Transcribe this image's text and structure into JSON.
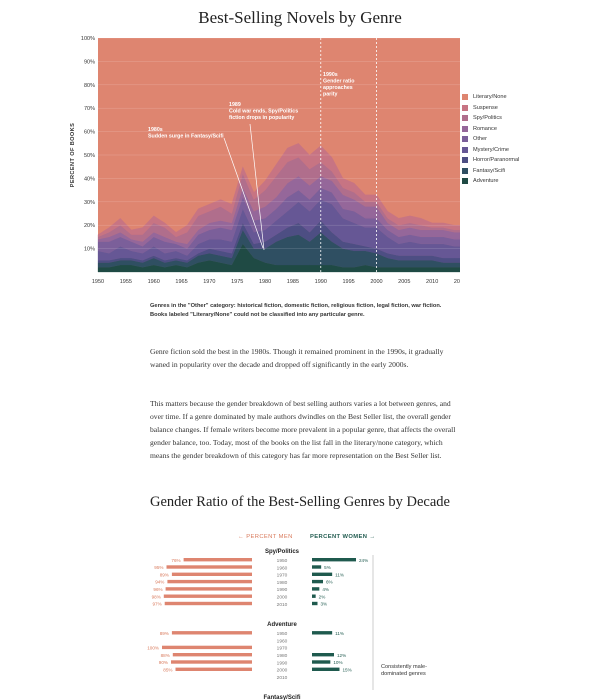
{
  "chart_data": [
    {
      "type": "area",
      "title": "Best-Selling Novels by Genre",
      "ylabel": "PERCENT OF BOOKS",
      "ylim": [
        0,
        100
      ],
      "xlim": [
        1950,
        2015
      ],
      "y_tick_labels": [
        "10%",
        "20%",
        "30%",
        "40%",
        "50%",
        "60%",
        "70%",
        "80%",
        "90%",
        "100%"
      ],
      "x_tick_labels": [
        "1950",
        "1955",
        "1960",
        "1965",
        "1970",
        "1975",
        "1980",
        "1985",
        "1990",
        "1995",
        "2000",
        "2005",
        "2010",
        "2015"
      ],
      "stacking": "stacked to 100%, Adventure at bottom",
      "legend_position": "right",
      "x": [
        1950,
        1952,
        1954,
        1956,
        1958,
        1960,
        1962,
        1964,
        1966,
        1968,
        1970,
        1972,
        1974,
        1976,
        1978,
        1980,
        1982,
        1984,
        1986,
        1988,
        1990,
        1992,
        1994,
        1996,
        1998,
        2000,
        2002,
        2004,
        2006,
        2008,
        2010,
        2012,
        2014,
        2015
      ],
      "series": [
        {
          "name": "Adventure",
          "values": [
            2,
            2,
            3,
            3,
            2,
            3,
            2,
            3,
            2,
            4,
            5,
            4,
            3,
            12,
            6,
            4,
            3,
            3,
            3,
            3,
            3,
            3,
            2,
            2,
            3,
            2,
            2,
            2,
            2,
            2,
            2,
            2,
            2,
            2
          ]
        },
        {
          "name": "Fantasy/Scifi",
          "values": [
            2,
            2,
            2,
            2,
            2,
            3,
            2,
            2,
            2,
            3,
            3,
            3,
            3,
            6,
            4,
            6,
            10,
            12,
            13,
            10,
            14,
            10,
            8,
            7,
            6,
            6,
            4,
            3,
            3,
            3,
            3,
            2,
            2,
            2
          ]
        },
        {
          "name": "Horror/Paranormal",
          "values": [
            1,
            1,
            1,
            1,
            1,
            1,
            1,
            1,
            1,
            1,
            2,
            2,
            2,
            3,
            2,
            3,
            3,
            4,
            5,
            4,
            5,
            4,
            3,
            3,
            2,
            2,
            2,
            2,
            2,
            2,
            2,
            2,
            2,
            2
          ]
        },
        {
          "name": "Mystery/Crime",
          "values": [
            4,
            3,
            5,
            3,
            3,
            4,
            3,
            3,
            2,
            4,
            4,
            5,
            5,
            6,
            5,
            5,
            6,
            7,
            9,
            9,
            9,
            12,
            10,
            9,
            8,
            9,
            7,
            5,
            6,
            5,
            5,
            6,
            5,
            5
          ]
        },
        {
          "name": "Other",
          "values": [
            4,
            5,
            4,
            4,
            3,
            4,
            5,
            3,
            3,
            4,
            4,
            5,
            5,
            5,
            5,
            5,
            5,
            6,
            5,
            5,
            5,
            5,
            4,
            5,
            4,
            4,
            3,
            3,
            3,
            3,
            3,
            3,
            3,
            3
          ]
        },
        {
          "name": "Romance",
          "values": [
            1,
            2,
            2,
            1,
            2,
            2,
            2,
            1,
            2,
            2,
            3,
            3,
            3,
            4,
            4,
            5,
            5,
            6,
            6,
            6,
            5,
            5,
            6,
            5,
            5,
            5,
            3,
            3,
            3,
            3,
            3,
            3,
            3,
            3
          ]
        },
        {
          "name": "Spy/Politics",
          "values": [
            1,
            2,
            3,
            2,
            3,
            4,
            4,
            2,
            5,
            6,
            5,
            6,
            4,
            6,
            5,
            7,
            9,
            9,
            8,
            7,
            6,
            4,
            3,
            3,
            2,
            2,
            2,
            2,
            2,
            2,
            1,
            1,
            1,
            1
          ]
        },
        {
          "name": "Suspense",
          "values": [
            1,
            2,
            3,
            2,
            3,
            3,
            2,
            2,
            3,
            3,
            3,
            3,
            4,
            3,
            3,
            4,
            5,
            6,
            6,
            6,
            7,
            6,
            4,
            4,
            3,
            3,
            3,
            3,
            3,
            3,
            2,
            2,
            2,
            2
          ]
        },
        {
          "name": "Literary/None",
          "values": [
            84,
            81,
            77,
            82,
            81,
            76,
            79,
            83,
            80,
            73,
            71,
            69,
            71,
            55,
            66,
            61,
            54,
            47,
            45,
            50,
            46,
            51,
            60,
            62,
            67,
            67,
            74,
            77,
            76,
            77,
            79,
            79,
            80,
            80
          ]
        }
      ],
      "colors": {
        "Literary/None": "#de8570",
        "Suspense": "#c77483",
        "Spy/Politics": "#b06e8c",
        "Romance": "#95679a",
        "Other": "#7b5f9a",
        "Mystery/Crime": "#665795",
        "Horror/Paranormal": "#4d4e83",
        "Fantasy/Scifi": "#2f4f62",
        "Adventure": "#1f4a44"
      },
      "legend_order": [
        "Literary/None",
        "Suspense",
        "Spy/Politics",
        "Romance",
        "Other",
        "Mystery/Crime",
        "Horror/Paranormal",
        "Fantasy/Scifi",
        "Adventure"
      ],
      "reference_lines_x": [
        1990,
        2000
      ],
      "annotations": [
        {
          "lines": [
            "1980s",
            "Sudden surge in Fantasy/Scifi"
          ],
          "x": 1980
        },
        {
          "lines": [
            "1989",
            "Cold war ends, Spy/Politics",
            "fiction drops in popularity"
          ],
          "x": 1989
        },
        {
          "lines": [
            "1990s",
            "Gender ratio",
            "approaches",
            "parity"
          ],
          "x": 1990
        }
      ]
    },
    {
      "type": "bar",
      "title": "Gender Ratio of the Best-Selling Genres by Decade",
      "direction_labels": {
        "men": "← PERCENT MEN",
        "women": "PERCENT WOMEN →"
      },
      "colors": {
        "men": "#de8570",
        "women": "#1f5a4e"
      },
      "groups": [
        {
          "name": "Spy/Politics",
          "rows": [
            {
              "decade": "1950",
              "men": 76,
              "women": 24,
              "men_label": "76%",
              "women_label": "24%"
            },
            {
              "decade": "1960",
              "men": 95,
              "women": 5,
              "men_label": "95%",
              "women_label": "5%"
            },
            {
              "decade": "1970",
              "men": 89,
              "women": 11,
              "men_label": "89%",
              "women_label": "11%"
            },
            {
              "decade": "1980",
              "men": 94,
              "women": 6,
              "men_label": "94%",
              "women_label": "6%"
            },
            {
              "decade": "1990",
              "men": 96,
              "women": 4,
              "men_label": "96%",
              "women_label": "4%"
            },
            {
              "decade": "2000",
              "men": 98,
              "women": 2,
              "men_label": "98%",
              "women_label": "2%"
            },
            {
              "decade": "2010",
              "men": 97,
              "women": 3,
              "men_label": "97%",
              "women_label": "3%"
            }
          ]
        },
        {
          "name": "Adventure",
          "rows": [
            {
              "decade": "1950",
              "men": 89,
              "women": 11,
              "men_label": "89%",
              "women_label": "11%"
            },
            {
              "decade": "1960",
              "men": null,
              "women": null,
              "men_label": "",
              "women_label": ""
            },
            {
              "decade": "1970",
              "men": 100,
              "women": 0,
              "men_label": "100%",
              "women_label": ""
            },
            {
              "decade": "1980",
              "men": 88,
              "women": 12,
              "men_label": "88%",
              "women_label": "12%"
            },
            {
              "decade": "1990",
              "men": 90,
              "women": 10,
              "men_label": "90%",
              "women_label": "10%"
            },
            {
              "decade": "2000",
              "men": 85,
              "women": 15,
              "men_label": "85%",
              "women_label": "15%"
            },
            {
              "decade": "2010",
              "men": null,
              "women": null,
              "men_label": "",
              "women_label": ""
            }
          ]
        },
        {
          "name": "Fantasy/Scifi",
          "rows": []
        }
      ],
      "side_note": "Consistently male-dominated genres"
    }
  ],
  "text": {
    "note": "Genres in the \"Other\" category: historical fiction, domestic fiction, religious fiction, legal fiction, war fiction. Books labeled \"Literary/None\" could not be classified into any particular genre.",
    "paragraph1": "Genre fiction sold the best in the 1980s. Though it remained prominent in the 1990s, it gradually waned in popularity over the decade and dropped off significantly in the early 2000s.",
    "paragraph2": "This matters because the gender breakdown of best selling authors varies a lot between genres, and over time. If a genre dominated by male authors dwindles on the Best Seller list, the overall gender balance changes. If female writers become more prevalent in a popular genre, that affects the overall gender balance, too. Today, most of the books on the list fall in the literary/none category, which means the gender breakdown of this category has far more representation on the Best Seller list."
  }
}
